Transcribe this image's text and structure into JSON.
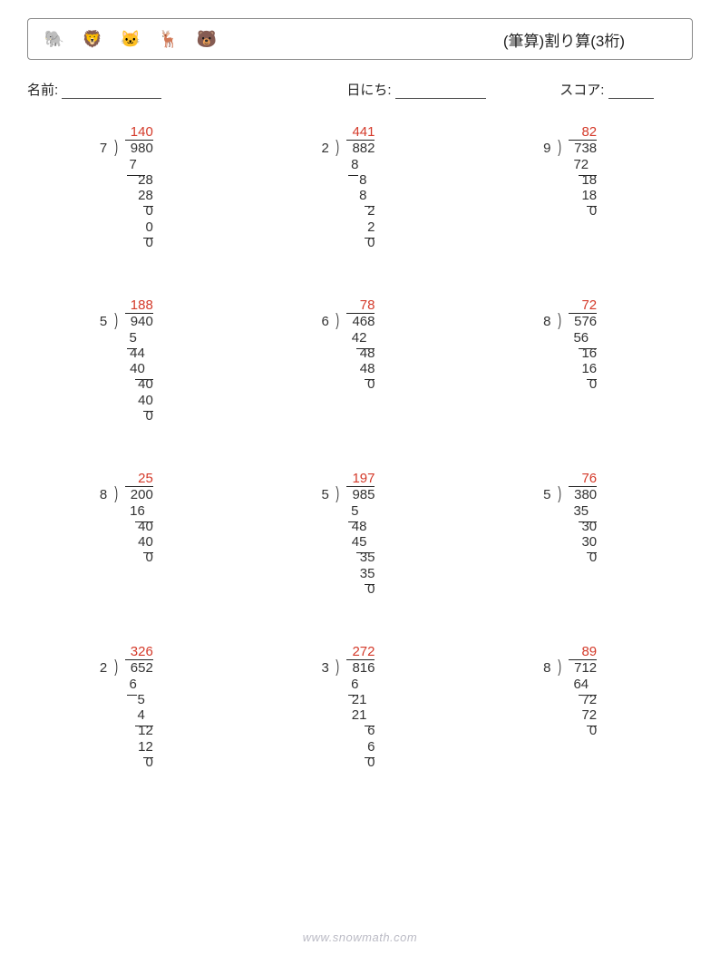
{
  "header": {
    "title": "(筆算)割り算(3桁)",
    "icons": [
      {
        "name": "elephant-icon",
        "glyph": "🐘",
        "bg": "#f0ede8"
      },
      {
        "name": "lion-icon",
        "glyph": "🦁",
        "bg": "#f5d078"
      },
      {
        "name": "cat-icon",
        "glyph": "🐱",
        "bg": "#c8d4e0"
      },
      {
        "name": "deer-icon",
        "glyph": "🦌",
        "bg": "#f5d8a8"
      },
      {
        "name": "bear-icon",
        "glyph": "🐻",
        "bg": "#d4a878"
      }
    ]
  },
  "info": {
    "name_label": "名前:",
    "date_label": "日にち:",
    "score_label": "スコア:",
    "name_underline_w": 110,
    "date_underline_w": 100,
    "score_underline_w": 50
  },
  "colors": {
    "quotient": "#d43a2a",
    "text": "#222222",
    "border": "#888888",
    "background": "#ffffff"
  },
  "typography": {
    "body_fontsize": 15,
    "title_fontsize": 17
  },
  "grid": {
    "cols": 3,
    "rows": 4,
    "row_gap": 52
  },
  "char_w": 9,
  "problems": [
    {
      "divisor": "7",
      "dividend": "980",
      "quotient": "140",
      "q_indent": 0,
      "steps": [
        {
          "v": "7",
          "indent": 0,
          "bar_after": {
            "indent": 0,
            "w": 2
          }
        },
        {
          "v": "28",
          "indent": 1
        },
        {
          "v": "28",
          "indent": 1,
          "bar_after": {
            "indent": 2,
            "w": 1
          }
        },
        {
          "v": "0",
          "indent": 2
        },
        {
          "v": "0",
          "indent": 2,
          "bar_after": {
            "indent": 2,
            "w": 1
          }
        },
        {
          "v": "0",
          "indent": 2
        }
      ]
    },
    {
      "divisor": "2",
      "dividend": "882",
      "quotient": "441",
      "q_indent": 0,
      "steps": [
        {
          "v": "8",
          "indent": 0,
          "bar_after": {
            "indent": 0,
            "w": 1
          }
        },
        {
          "v": "8",
          "indent": 1
        },
        {
          "v": "8",
          "indent": 1,
          "bar_after": {
            "indent": 2,
            "w": 1
          }
        },
        {
          "v": "2",
          "indent": 2
        },
        {
          "v": "2",
          "indent": 2,
          "bar_after": {
            "indent": 2,
            "w": 1
          }
        },
        {
          "v": "0",
          "indent": 2
        }
      ]
    },
    {
      "divisor": "9",
      "dividend": "738",
      "quotient": "82",
      "q_indent": 1,
      "steps": [
        {
          "v": "72",
          "indent": 0,
          "bar_after": {
            "indent": 1,
            "w": 2
          }
        },
        {
          "v": "18",
          "indent": 1
        },
        {
          "v": "18",
          "indent": 1,
          "bar_after": {
            "indent": 2,
            "w": 1
          }
        },
        {
          "v": "0",
          "indent": 2
        }
      ]
    },
    {
      "divisor": "5",
      "dividend": "940",
      "quotient": "188",
      "q_indent": 0,
      "steps": [
        {
          "v": "5",
          "indent": 0,
          "bar_after": {
            "indent": 0,
            "w": 1
          }
        },
        {
          "v": "44",
          "indent": 0
        },
        {
          "v": "40",
          "indent": 0,
          "bar_after": {
            "indent": 1,
            "w": 2
          }
        },
        {
          "v": "40",
          "indent": 1
        },
        {
          "v": "40",
          "indent": 1,
          "bar_after": {
            "indent": 2,
            "w": 1
          }
        },
        {
          "v": "0",
          "indent": 2
        }
      ]
    },
    {
      "divisor": "6",
      "dividend": "468",
      "quotient": "78",
      "q_indent": 1,
      "steps": [
        {
          "v": "42",
          "indent": 0,
          "bar_after": {
            "indent": 1,
            "w": 2
          }
        },
        {
          "v": "48",
          "indent": 1
        },
        {
          "v": "48",
          "indent": 1,
          "bar_after": {
            "indent": 2,
            "w": 1
          }
        },
        {
          "v": "0",
          "indent": 2
        }
      ]
    },
    {
      "divisor": "8",
      "dividend": "576",
      "quotient": "72",
      "q_indent": 1,
      "steps": [
        {
          "v": "56",
          "indent": 0,
          "bar_after": {
            "indent": 1,
            "w": 2
          }
        },
        {
          "v": "16",
          "indent": 1
        },
        {
          "v": "16",
          "indent": 1,
          "bar_after": {
            "indent": 2,
            "w": 1
          }
        },
        {
          "v": "0",
          "indent": 2
        }
      ]
    },
    {
      "divisor": "8",
      "dividend": "200",
      "quotient": "25",
      "q_indent": 1,
      "steps": [
        {
          "v": "16",
          "indent": 0,
          "bar_after": {
            "indent": 1,
            "w": 2
          }
        },
        {
          "v": "40",
          "indent": 1
        },
        {
          "v": "40",
          "indent": 1,
          "bar_after": {
            "indent": 2,
            "w": 1
          }
        },
        {
          "v": "0",
          "indent": 2
        }
      ]
    },
    {
      "divisor": "5",
      "dividend": "985",
      "quotient": "197",
      "q_indent": 0,
      "steps": [
        {
          "v": "5",
          "indent": 0,
          "bar_after": {
            "indent": 0,
            "w": 1
          }
        },
        {
          "v": "48",
          "indent": 0
        },
        {
          "v": "45",
          "indent": 0,
          "bar_after": {
            "indent": 1,
            "w": 2
          }
        },
        {
          "v": "35",
          "indent": 1
        },
        {
          "v": "35",
          "indent": 1,
          "bar_after": {
            "indent": 2,
            "w": 1
          }
        },
        {
          "v": "0",
          "indent": 2
        }
      ]
    },
    {
      "divisor": "5",
      "dividend": "380",
      "quotient": "76",
      "q_indent": 1,
      "steps": [
        {
          "v": "35",
          "indent": 0,
          "bar_after": {
            "indent": 1,
            "w": 2
          }
        },
        {
          "v": "30",
          "indent": 1
        },
        {
          "v": "30",
          "indent": 1,
          "bar_after": {
            "indent": 2,
            "w": 1
          }
        },
        {
          "v": "0",
          "indent": 2
        }
      ]
    },
    {
      "divisor": "2",
      "dividend": "652",
      "quotient": "326",
      "q_indent": 0,
      "steps": [
        {
          "v": "6",
          "indent": 0,
          "bar_after": {
            "indent": 0,
            "w": 1
          }
        },
        {
          "v": "5",
          "indent": 1
        },
        {
          "v": "4",
          "indent": 1,
          "bar_after": {
            "indent": 1,
            "w": 2
          }
        },
        {
          "v": "12",
          "indent": 1
        },
        {
          "v": "12",
          "indent": 1,
          "bar_after": {
            "indent": 2,
            "w": 1
          }
        },
        {
          "v": "0",
          "indent": 2
        }
      ]
    },
    {
      "divisor": "3",
      "dividend": "816",
      "quotient": "272",
      "q_indent": 0,
      "steps": [
        {
          "v": "6",
          "indent": 0,
          "bar_after": {
            "indent": 0,
            "w": 1
          }
        },
        {
          "v": "21",
          "indent": 0
        },
        {
          "v": "21",
          "indent": 0,
          "bar_after": {
            "indent": 2,
            "w": 1
          }
        },
        {
          "v": "6",
          "indent": 2
        },
        {
          "v": "6",
          "indent": 2,
          "bar_after": {
            "indent": 2,
            "w": 1
          }
        },
        {
          "v": "0",
          "indent": 2
        }
      ]
    },
    {
      "divisor": "8",
      "dividend": "712",
      "quotient": "89",
      "q_indent": 1,
      "steps": [
        {
          "v": "64",
          "indent": 0,
          "bar_after": {
            "indent": 1,
            "w": 2
          }
        },
        {
          "v": "72",
          "indent": 1
        },
        {
          "v": "72",
          "indent": 1,
          "bar_after": {
            "indent": 2,
            "w": 1
          }
        },
        {
          "v": "0",
          "indent": 2
        }
      ]
    }
  ],
  "watermark": "www.snowmath.com"
}
